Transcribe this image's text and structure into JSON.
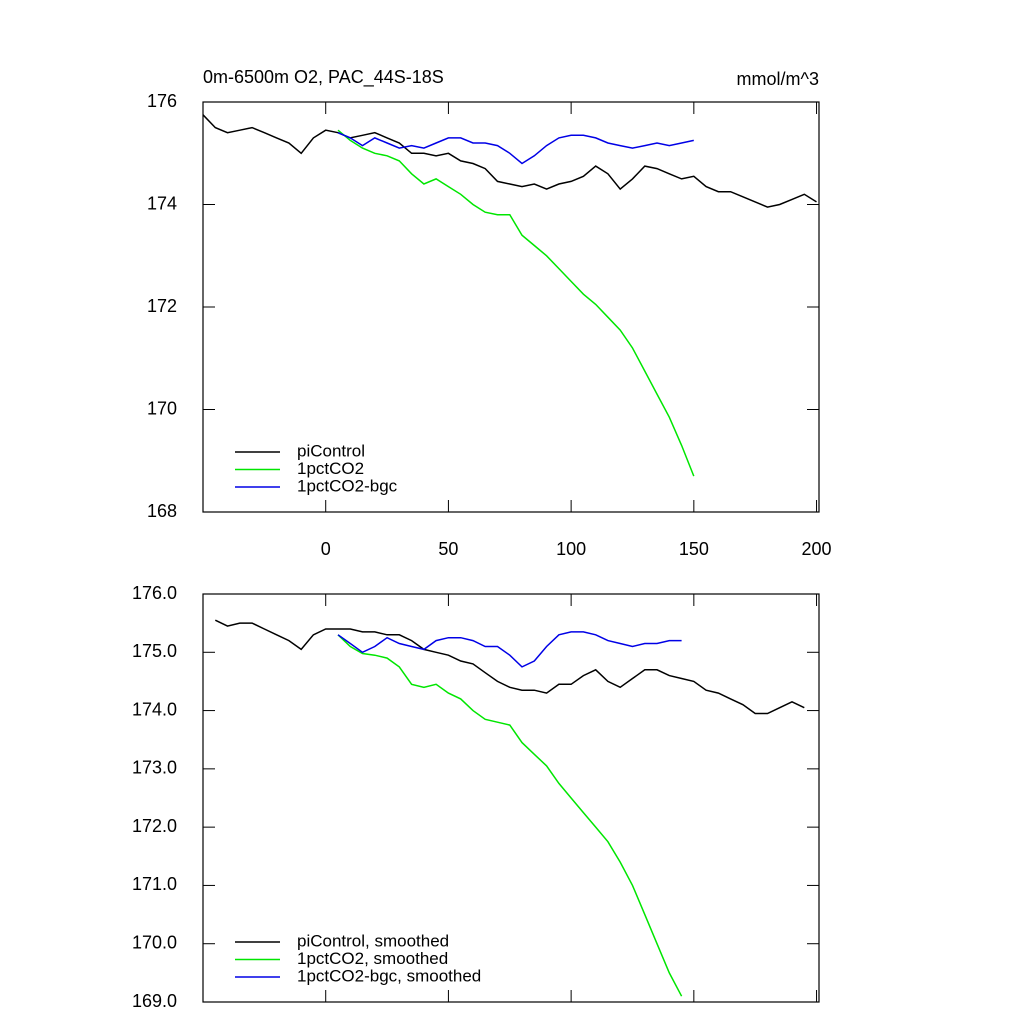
{
  "chart_data": [
    {
      "type": "line",
      "title": "0m-6500m O2, PAC_44S-18S",
      "units": "mmol/m^3",
      "x": [
        -50,
        -45,
        -40,
        -35,
        -30,
        -25,
        -20,
        -15,
        -10,
        -5,
        0,
        5,
        10,
        15,
        20,
        25,
        30,
        35,
        40,
        45,
        50,
        55,
        60,
        65,
        70,
        75,
        80,
        85,
        90,
        95,
        100,
        105,
        110,
        115,
        120,
        125,
        130,
        135,
        140,
        145,
        150,
        155,
        160,
        165,
        170,
        175,
        180,
        185,
        190,
        195,
        200
      ],
      "xlim": [
        -50,
        201
      ],
      "xticks": [
        0,
        50,
        100,
        150,
        200
      ],
      "ylim": [
        168,
        176
      ],
      "yticks": [
        168,
        170,
        172,
        174,
        176
      ],
      "legend": "lower left",
      "series": [
        {
          "name": "piControl",
          "color": "#000000",
          "values": [
            175.75,
            175.5,
            175.4,
            175.45,
            175.5,
            175.4,
            175.3,
            175.2,
            175.0,
            175.3,
            175.45,
            175.4,
            175.3,
            175.35,
            175.4,
            175.3,
            175.2,
            175.0,
            175.0,
            174.95,
            175.0,
            174.85,
            174.8,
            174.7,
            174.45,
            174.4,
            174.35,
            174.4,
            174.3,
            174.4,
            174.45,
            174.55,
            174.75,
            174.6,
            174.3,
            174.5,
            174.75,
            174.7,
            174.6,
            174.5,
            174.55,
            174.35,
            174.25,
            174.25,
            174.15,
            174.05,
            173.95,
            174.0,
            174.1,
            174.2,
            174.05
          ]
        },
        {
          "name": "1pctCO2",
          "color": "#00e600",
          "values": [
            null,
            null,
            null,
            null,
            null,
            null,
            null,
            null,
            null,
            null,
            null,
            175.45,
            175.25,
            175.1,
            175.0,
            174.95,
            174.85,
            174.6,
            174.4,
            174.5,
            174.35,
            174.2,
            174.0,
            173.85,
            173.8,
            173.8,
            173.4,
            173.2,
            173.0,
            172.75,
            172.5,
            172.25,
            172.05,
            171.8,
            171.55,
            171.2,
            170.75,
            170.3,
            169.85,
            169.3,
            168.7,
            null,
            null,
            null,
            null,
            null,
            null,
            null,
            null,
            null,
            null
          ]
        },
        {
          "name": "1pctCO2-bgc",
          "color": "#0000e6",
          "values": [
            null,
            null,
            null,
            null,
            null,
            null,
            null,
            null,
            null,
            null,
            null,
            175.4,
            175.3,
            175.15,
            175.3,
            175.2,
            175.1,
            175.15,
            175.1,
            175.2,
            175.3,
            175.3,
            175.2,
            175.2,
            175.15,
            175.0,
            174.8,
            174.95,
            175.15,
            175.3,
            175.35,
            175.35,
            175.3,
            175.2,
            175.15,
            175.1,
            175.15,
            175.2,
            175.15,
            175.2,
            175.25,
            null,
            null,
            null,
            null,
            null,
            null,
            null,
            null,
            null,
            null
          ]
        }
      ]
    },
    {
      "type": "line",
      "x": [
        -50,
        -45,
        -40,
        -35,
        -30,
        -25,
        -20,
        -15,
        -10,
        -5,
        0,
        5,
        10,
        15,
        20,
        25,
        30,
        35,
        40,
        45,
        50,
        55,
        60,
        65,
        70,
        75,
        80,
        85,
        90,
        95,
        100,
        105,
        110,
        115,
        120,
        125,
        130,
        135,
        140,
        145,
        150,
        155,
        160,
        165,
        170,
        175,
        180,
        185,
        190,
        195,
        200
      ],
      "xlim": [
        -50,
        201
      ],
      "xticks": [
        0,
        50,
        100,
        150,
        200
      ],
      "xtick_labels": false,
      "ylim": [
        169,
        176
      ],
      "yticks": [
        {
          "value": 169,
          "label": "169.0"
        },
        {
          "value": 170,
          "label": "170.0"
        },
        {
          "value": 171,
          "label": "171.0"
        },
        {
          "value": 172,
          "label": "172.0"
        },
        {
          "value": 173,
          "label": "173.0"
        },
        {
          "value": 174,
          "label": "174.0"
        },
        {
          "value": 175,
          "label": "175.0"
        },
        {
          "value": 176,
          "label": "176.0"
        }
      ],
      "legend": "lower left",
      "series": [
        {
          "name": "piControl, smoothed",
          "color": "#000000",
          "values": [
            null,
            175.55,
            175.45,
            175.5,
            175.5,
            175.4,
            175.3,
            175.2,
            175.05,
            175.3,
            175.4,
            175.4,
            175.4,
            175.35,
            175.35,
            175.3,
            175.3,
            175.2,
            175.05,
            175.0,
            174.95,
            174.85,
            174.8,
            174.65,
            174.5,
            174.4,
            174.35,
            174.35,
            174.3,
            174.45,
            174.45,
            174.6,
            174.7,
            174.5,
            174.4,
            174.55,
            174.7,
            174.7,
            174.6,
            174.55,
            174.5,
            174.35,
            174.3,
            174.2,
            174.1,
            173.95,
            173.95,
            174.05,
            174.15,
            174.05,
            null
          ]
        },
        {
          "name": "1pctCO2, smoothed",
          "color": "#00e600",
          "values": [
            null,
            null,
            null,
            null,
            null,
            null,
            null,
            null,
            null,
            null,
            null,
            175.3,
            175.1,
            174.98,
            174.95,
            174.9,
            174.75,
            174.45,
            174.4,
            174.45,
            174.3,
            174.2,
            174.0,
            173.85,
            173.8,
            173.75,
            173.45,
            173.25,
            173.05,
            172.75,
            172.5,
            172.25,
            172.0,
            171.75,
            171.4,
            171.0,
            170.5,
            170.0,
            169.5,
            169.1,
            null,
            null,
            null,
            null,
            null,
            null,
            null,
            null,
            null,
            null,
            null
          ]
        },
        {
          "name": "1pctCO2-bgc, smoothed",
          "color": "#0000e6",
          "values": [
            null,
            null,
            null,
            null,
            null,
            null,
            null,
            null,
            null,
            null,
            null,
            175.3,
            175.15,
            175.0,
            175.1,
            175.25,
            175.15,
            175.1,
            175.05,
            175.2,
            175.25,
            175.25,
            175.2,
            175.1,
            175.1,
            174.95,
            174.75,
            174.85,
            175.1,
            175.3,
            175.35,
            175.35,
            175.3,
            175.2,
            175.15,
            175.1,
            175.15,
            175.15,
            175.2,
            175.2,
            null,
            null,
            null,
            null,
            null,
            null,
            null,
            null,
            null,
            null,
            null
          ]
        }
      ]
    }
  ]
}
